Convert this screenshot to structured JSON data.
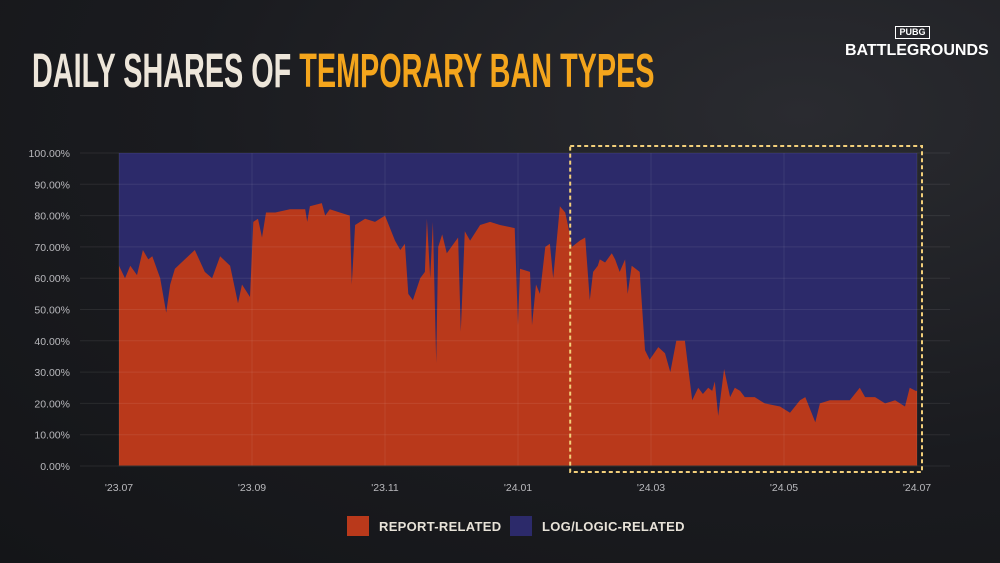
{
  "title": {
    "part1": "DAILY SHARES OF",
    "part2": "TEMPORARY BAN TYPES"
  },
  "logo": {
    "small": "PUBG",
    "big": "BATTLEGROUNDS"
  },
  "colors": {
    "report": "#b9391b",
    "log": "#2c2a6a",
    "title_accent": "#f4a51c",
    "highlight": "#f2cf7a"
  },
  "chart_data": {
    "type": "area",
    "stacked": true,
    "normalized": true,
    "title": "DAILY SHARES OF TEMPORARY BAN TYPES",
    "xlabel": "",
    "ylabel": "",
    "x_unit": "months since '23.07",
    "xlim": [
      0,
      12
    ],
    "ylim": [
      0,
      100
    ],
    "yticks": [
      "0.00%",
      "10.00%",
      "20.00%",
      "30.00%",
      "40.00%",
      "50.00%",
      "60.00%",
      "70.00%",
      "80.00%",
      "90.00%",
      "100.00%"
    ],
    "xticks": [
      {
        "x": 0,
        "label": "'23.07"
      },
      {
        "x": 2,
        "label": "'23.09"
      },
      {
        "x": 4,
        "label": "'23.11"
      },
      {
        "x": 6,
        "label": "'24.01"
      },
      {
        "x": 8,
        "label": "'24.03"
      },
      {
        "x": 10,
        "label": "'24.05"
      },
      {
        "x": 12,
        "label": "'24.07"
      }
    ],
    "legend": [
      {
        "name": "REPORT-RELATED",
        "color": "#b9391b"
      },
      {
        "name": "LOG/LOGIC-RELATED",
        "color": "#2c2a6a"
      }
    ],
    "legend_position": "bottom",
    "highlight_region": {
      "x_start": 6.8,
      "x_end": 12
    },
    "report_share": [
      [
        0,
        64
      ],
      [
        0.09,
        60
      ],
      [
        0.17,
        64
      ],
      [
        0.27,
        61
      ],
      [
        0.36,
        69
      ],
      [
        0.44,
        66
      ],
      [
        0.5,
        67
      ],
      [
        0.62,
        60
      ],
      [
        0.71,
        49
      ],
      [
        0.77,
        58
      ],
      [
        0.84,
        63
      ],
      [
        0.99,
        66
      ],
      [
        1.14,
        69
      ],
      [
        1.29,
        62
      ],
      [
        1.4,
        60
      ],
      [
        1.52,
        67
      ],
      [
        1.67,
        64
      ],
      [
        1.79,
        52
      ],
      [
        1.85,
        58
      ],
      [
        1.97,
        54
      ],
      [
        2.02,
        78
      ],
      [
        2.09,
        79
      ],
      [
        2.15,
        73
      ],
      [
        2.21,
        81
      ],
      [
        2.35,
        81
      ],
      [
        2.57,
        82
      ],
      [
        2.8,
        82
      ],
      [
        2.83,
        78
      ],
      [
        2.87,
        83
      ],
      [
        3.05,
        84
      ],
      [
        3.1,
        80
      ],
      [
        3.17,
        82
      ],
      [
        3.32,
        81
      ],
      [
        3.47,
        80
      ],
      [
        3.5,
        58
      ],
      [
        3.55,
        77
      ],
      [
        3.7,
        79
      ],
      [
        3.85,
        78
      ],
      [
        4.0,
        80
      ],
      [
        4.15,
        72
      ],
      [
        4.23,
        69
      ],
      [
        4.3,
        71
      ],
      [
        4.35,
        55
      ],
      [
        4.42,
        53
      ],
      [
        4.53,
        60
      ],
      [
        4.6,
        62
      ],
      [
        4.63,
        79
      ],
      [
        4.68,
        60
      ],
      [
        4.72,
        78
      ],
      [
        4.77,
        33
      ],
      [
        4.8,
        70
      ],
      [
        4.86,
        74
      ],
      [
        4.93,
        68
      ],
      [
        5.1,
        73
      ],
      [
        5.14,
        43
      ],
      [
        5.2,
        75
      ],
      [
        5.28,
        72
      ],
      [
        5.43,
        77
      ],
      [
        5.58,
        78
      ],
      [
        5.73,
        77
      ],
      [
        5.95,
        76
      ],
      [
        6.0,
        45
      ],
      [
        6.03,
        63
      ],
      [
        6.18,
        62
      ],
      [
        6.21,
        45
      ],
      [
        6.27,
        58
      ],
      [
        6.33,
        55
      ],
      [
        6.41,
        70
      ],
      [
        6.48,
        71
      ],
      [
        6.53,
        60
      ],
      [
        6.63,
        83
      ],
      [
        6.71,
        81
      ],
      [
        6.75,
        77
      ],
      [
        6.81,
        70
      ],
      [
        6.93,
        72
      ],
      [
        7.01,
        73
      ],
      [
        7.08,
        53
      ],
      [
        7.13,
        62
      ],
      [
        7.2,
        64
      ],
      [
        7.23,
        66
      ],
      [
        7.31,
        65
      ],
      [
        7.41,
        68
      ],
      [
        7.46,
        66
      ],
      [
        7.53,
        62
      ],
      [
        7.61,
        66
      ],
      [
        7.65,
        55
      ],
      [
        7.71,
        64
      ],
      [
        7.83,
        62
      ],
      [
        7.91,
        37
      ],
      [
        7.98,
        34
      ],
      [
        8.11,
        38
      ],
      [
        8.21,
        36
      ],
      [
        8.29,
        30
      ],
      [
        8.38,
        40
      ],
      [
        8.51,
        40
      ],
      [
        8.62,
        21
      ],
      [
        8.71,
        25
      ],
      [
        8.78,
        23
      ],
      [
        8.86,
        25
      ],
      [
        8.92,
        24
      ],
      [
        8.96,
        27
      ],
      [
        9.01,
        16
      ],
      [
        9.1,
        31
      ],
      [
        9.19,
        22
      ],
      [
        9.26,
        25
      ],
      [
        9.34,
        24
      ],
      [
        9.41,
        22
      ],
      [
        9.56,
        22
      ],
      [
        9.71,
        20
      ],
      [
        9.94,
        19
      ],
      [
        10.09,
        17
      ],
      [
        10.24,
        21
      ],
      [
        10.32,
        22
      ],
      [
        10.47,
        14
      ],
      [
        10.54,
        20
      ],
      [
        10.69,
        21
      ],
      [
        10.84,
        21
      ],
      [
        10.99,
        21
      ],
      [
        11.14,
        25
      ],
      [
        11.22,
        22
      ],
      [
        11.37,
        22
      ],
      [
        11.52,
        20
      ],
      [
        11.67,
        21
      ],
      [
        11.82,
        19
      ],
      [
        11.89,
        25
      ],
      [
        11.98,
        24
      ]
    ]
  }
}
